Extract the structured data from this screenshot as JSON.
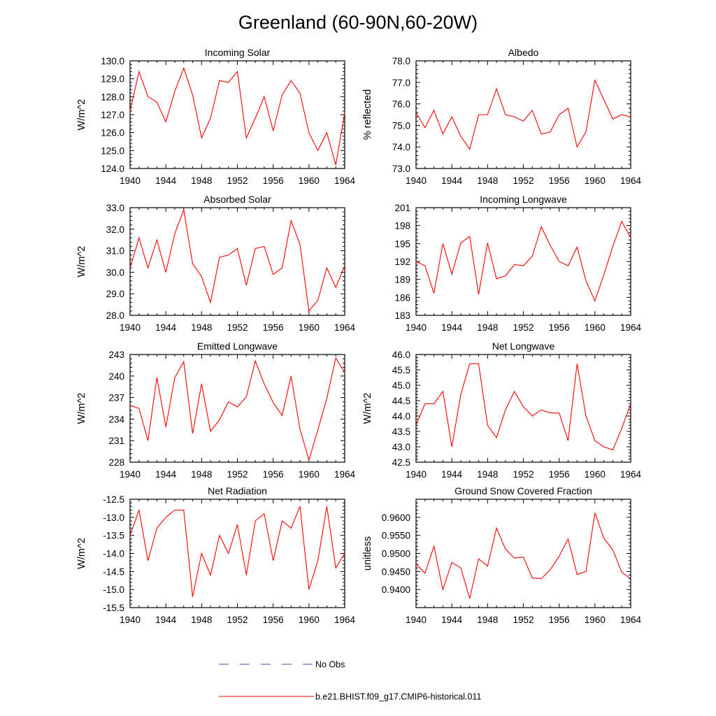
{
  "figure": {
    "title": "Greenland (60-90N,60-20W)",
    "legend": [
      {
        "label": "No Obs",
        "color": "#4a4aa8",
        "dashed": true
      },
      {
        "label": "b.e21.BHIST.f09_g17.CMIP6-historical.011",
        "color": "#ff0000",
        "dashed": false
      }
    ]
  },
  "chart_data": [
    {
      "type": "line",
      "title": "Incoming Solar",
      "ylabel": "W/m^2",
      "xlim": [
        1940,
        1964
      ],
      "xticks": [
        "1940",
        "1944",
        "1948",
        "1952",
        "1956",
        "1960",
        "1964"
      ],
      "ylim": [
        124.0,
        130.0
      ],
      "yticks": [
        "124.0",
        "125.0",
        "126.0",
        "127.0",
        "128.0",
        "129.0",
        "130.0"
      ],
      "x": [
        1940,
        1941,
        1942,
        1943,
        1944,
        1945,
        1946,
        1947,
        1948,
        1949,
        1950,
        1951,
        1952,
        1953,
        1954,
        1955,
        1956,
        1957,
        1958,
        1959,
        1960,
        1961,
        1962,
        1963,
        1964
      ],
      "series": [
        {
          "color": "#ff0000",
          "values": [
            127.2,
            129.4,
            128.0,
            127.7,
            126.6,
            128.3,
            129.6,
            128.1,
            125.7,
            126.8,
            128.9,
            128.8,
            129.4,
            125.7,
            126.8,
            128.0,
            126.1,
            128.1,
            128.9,
            128.2,
            126.0,
            125.0,
            126.0,
            124.2,
            127.1
          ]
        }
      ]
    },
    {
      "type": "line",
      "title": "Albedo",
      "ylabel": "% reflected",
      "xlim": [
        1940,
        1964
      ],
      "xticks": [
        "1940",
        "1944",
        "1948",
        "1952",
        "1956",
        "1960",
        "1964"
      ],
      "ylim": [
        73.0,
        78.0
      ],
      "yticks": [
        "73.0",
        "74.0",
        "75.0",
        "76.0",
        "77.0",
        "78.0"
      ],
      "x": [
        1940,
        1941,
        1942,
        1943,
        1944,
        1945,
        1946,
        1947,
        1948,
        1949,
        1950,
        1951,
        1952,
        1953,
        1954,
        1955,
        1956,
        1957,
        1958,
        1959,
        1960,
        1961,
        1962,
        1963,
        1964
      ],
      "series": [
        {
          "color": "#ff0000",
          "values": [
            75.6,
            74.9,
            75.7,
            74.6,
            75.4,
            74.5,
            73.9,
            75.5,
            75.5,
            76.7,
            75.5,
            75.4,
            75.2,
            75.7,
            74.6,
            74.7,
            75.5,
            75.8,
            74.0,
            74.7,
            77.1,
            76.2,
            75.3,
            75.5,
            75.4
          ]
        }
      ]
    },
    {
      "type": "line",
      "title": "Absorbed Solar",
      "ylabel": "W/m^2",
      "xlim": [
        1940,
        1964
      ],
      "xticks": [
        "1940",
        "1944",
        "1948",
        "1952",
        "1956",
        "1960",
        "1964"
      ],
      "ylim": [
        28.0,
        33.0
      ],
      "yticks": [
        "28.0",
        "29.0",
        "30.0",
        "31.0",
        "32.0",
        "33.0"
      ],
      "x": [
        1940,
        1941,
        1942,
        1943,
        1944,
        1945,
        1946,
        1947,
        1948,
        1949,
        1950,
        1951,
        1952,
        1953,
        1954,
        1955,
        1956,
        1957,
        1958,
        1959,
        1960,
        1961,
        1962,
        1963,
        1964
      ],
      "series": [
        {
          "color": "#ff0000",
          "values": [
            30.2,
            31.6,
            30.2,
            31.5,
            30.0,
            31.8,
            32.9,
            30.4,
            29.8,
            28.6,
            30.7,
            30.8,
            31.1,
            29.4,
            31.1,
            31.2,
            29.9,
            30.2,
            32.4,
            31.3,
            28.2,
            28.7,
            30.2,
            29.3,
            30.3
          ]
        }
      ]
    },
    {
      "type": "line",
      "title": "Incoming Longwave",
      "ylabel": "",
      "xlim": [
        1940,
        1964
      ],
      "xticks": [
        "1940",
        "1944",
        "1948",
        "1952",
        "1956",
        "1960",
        "1964"
      ],
      "ylim": [
        183,
        201
      ],
      "yticks": [
        "183",
        "186",
        "189",
        "192",
        "195",
        "198",
        "201"
      ],
      "x": [
        1940,
        1941,
        1942,
        1943,
        1944,
        1945,
        1946,
        1947,
        1948,
        1949,
        1950,
        1951,
        1952,
        1953,
        1954,
        1955,
        1956,
        1957,
        1958,
        1959,
        1960,
        1961,
        1962,
        1963,
        1964
      ],
      "series": [
        {
          "color": "#ff0000",
          "values": [
            192.0,
            191.3,
            186.7,
            195.0,
            189.9,
            195.1,
            196.2,
            186.5,
            195.1,
            189.1,
            189.6,
            191.5,
            191.3,
            192.9,
            197.8,
            194.7,
            192.0,
            191.3,
            194.4,
            188.8,
            185.4,
            189.8,
            194.5,
            198.7,
            196.0
          ]
        }
      ]
    },
    {
      "type": "line",
      "title": "Emitted Longwave",
      "ylabel": "W/m^2",
      "xlim": [
        1940,
        1964
      ],
      "xticks": [
        "1940",
        "1944",
        "1948",
        "1952",
        "1956",
        "1960",
        "1964"
      ],
      "ylim": [
        228,
        243
      ],
      "yticks": [
        "228",
        "231",
        "234",
        "237",
        "240",
        "243"
      ],
      "x": [
        1940,
        1941,
        1942,
        1943,
        1944,
        1945,
        1946,
        1947,
        1948,
        1949,
        1950,
        1951,
        1952,
        1953,
        1954,
        1955,
        1956,
        1957,
        1958,
        1959,
        1960,
        1961,
        1962,
        1963,
        1964
      ],
      "series": [
        {
          "color": "#ff0000",
          "values": [
            235.9,
            235.5,
            231.0,
            239.8,
            232.9,
            239.8,
            242.0,
            232.0,
            238.9,
            232.3,
            233.9,
            236.4,
            235.7,
            237.1,
            242.1,
            238.9,
            236.3,
            234.5,
            240.0,
            232.6,
            228.3,
            232.5,
            236.9,
            242.5,
            240.5
          ]
        }
      ]
    },
    {
      "type": "line",
      "title": "Net Longwave",
      "ylabel": "W/m^2",
      "xlim": [
        1940,
        1964
      ],
      "xticks": [
        "1940",
        "1944",
        "1948",
        "1952",
        "1956",
        "1960",
        "1964"
      ],
      "ylim": [
        42.5,
        46.0
      ],
      "yticks": [
        "42.5",
        "43.0",
        "43.5",
        "44.0",
        "44.5",
        "45.0",
        "45.5",
        "46.0"
      ],
      "x": [
        1940,
        1941,
        1942,
        1943,
        1944,
        1945,
        1946,
        1947,
        1948,
        1949,
        1950,
        1951,
        1952,
        1953,
        1954,
        1955,
        1956,
        1957,
        1958,
        1959,
        1960,
        1961,
        1962,
        1963,
        1964
      ],
      "series": [
        {
          "color": "#ff0000",
          "values": [
            43.7,
            44.4,
            44.4,
            44.8,
            43.0,
            44.7,
            45.7,
            45.7,
            43.7,
            43.3,
            44.2,
            44.8,
            44.3,
            44.0,
            44.2,
            44.1,
            44.1,
            43.2,
            45.7,
            44.0,
            43.2,
            43.0,
            42.9,
            43.6,
            44.4
          ]
        }
      ]
    },
    {
      "type": "line",
      "title": "Net Radiation",
      "ylabel": "W/m^2",
      "xlim": [
        1940,
        1964
      ],
      "xticks": [
        "1940",
        "1944",
        "1948",
        "1952",
        "1956",
        "1960",
        "1964"
      ],
      "ylim": [
        -15.5,
        -12.5
      ],
      "yticks": [
        "-15.5",
        "-15.0",
        "-14.5",
        "-14.0",
        "-13.5",
        "-13.0",
        "-12.5"
      ],
      "x": [
        1940,
        1941,
        1942,
        1943,
        1944,
        1945,
        1946,
        1947,
        1948,
        1949,
        1950,
        1951,
        1952,
        1953,
        1954,
        1955,
        1956,
        1957,
        1958,
        1959,
        1960,
        1961,
        1962,
        1963,
        1964
      ],
      "series": [
        {
          "color": "#ff0000",
          "values": [
            -13.5,
            -12.8,
            -14.2,
            -13.3,
            -13.0,
            -12.8,
            -12.8,
            -15.2,
            -14.0,
            -14.6,
            -13.5,
            -14.0,
            -13.2,
            -14.6,
            -13.1,
            -12.9,
            -14.2,
            -13.1,
            -13.3,
            -12.7,
            -15.0,
            -14.2,
            -12.7,
            -14.4,
            -14.0
          ]
        }
      ]
    },
    {
      "type": "line",
      "title": "Ground Snow Covered Fraction",
      "ylabel": "unitless",
      "xlim": [
        1940,
        1964
      ],
      "xticks": [
        "1940",
        "1944",
        "1948",
        "1952",
        "1956",
        "1960",
        "1964"
      ],
      "ylim": [
        0.935,
        0.965
      ],
      "yticks": [
        "0.9400",
        "0.9450",
        "0.9500",
        "0.9550",
        "0.9600"
      ],
      "ytick_values": [
        0.94,
        0.945,
        0.95,
        0.955,
        0.96
      ],
      "x": [
        1940,
        1941,
        1942,
        1943,
        1944,
        1945,
        1946,
        1947,
        1948,
        1949,
        1950,
        1951,
        1952,
        1953,
        1954,
        1955,
        1956,
        1957,
        1958,
        1959,
        1960,
        1961,
        1962,
        1963,
        1964
      ],
      "series": [
        {
          "color": "#ff0000",
          "values": [
            0.9472,
            0.9445,
            0.952,
            0.94,
            0.9475,
            0.946,
            0.9375,
            0.9485,
            0.9465,
            0.957,
            0.9512,
            0.9487,
            0.949,
            0.9432,
            0.943,
            0.9455,
            0.9492,
            0.954,
            0.9442,
            0.945,
            0.9612,
            0.9542,
            0.951,
            0.9448,
            0.943
          ]
        }
      ]
    }
  ]
}
